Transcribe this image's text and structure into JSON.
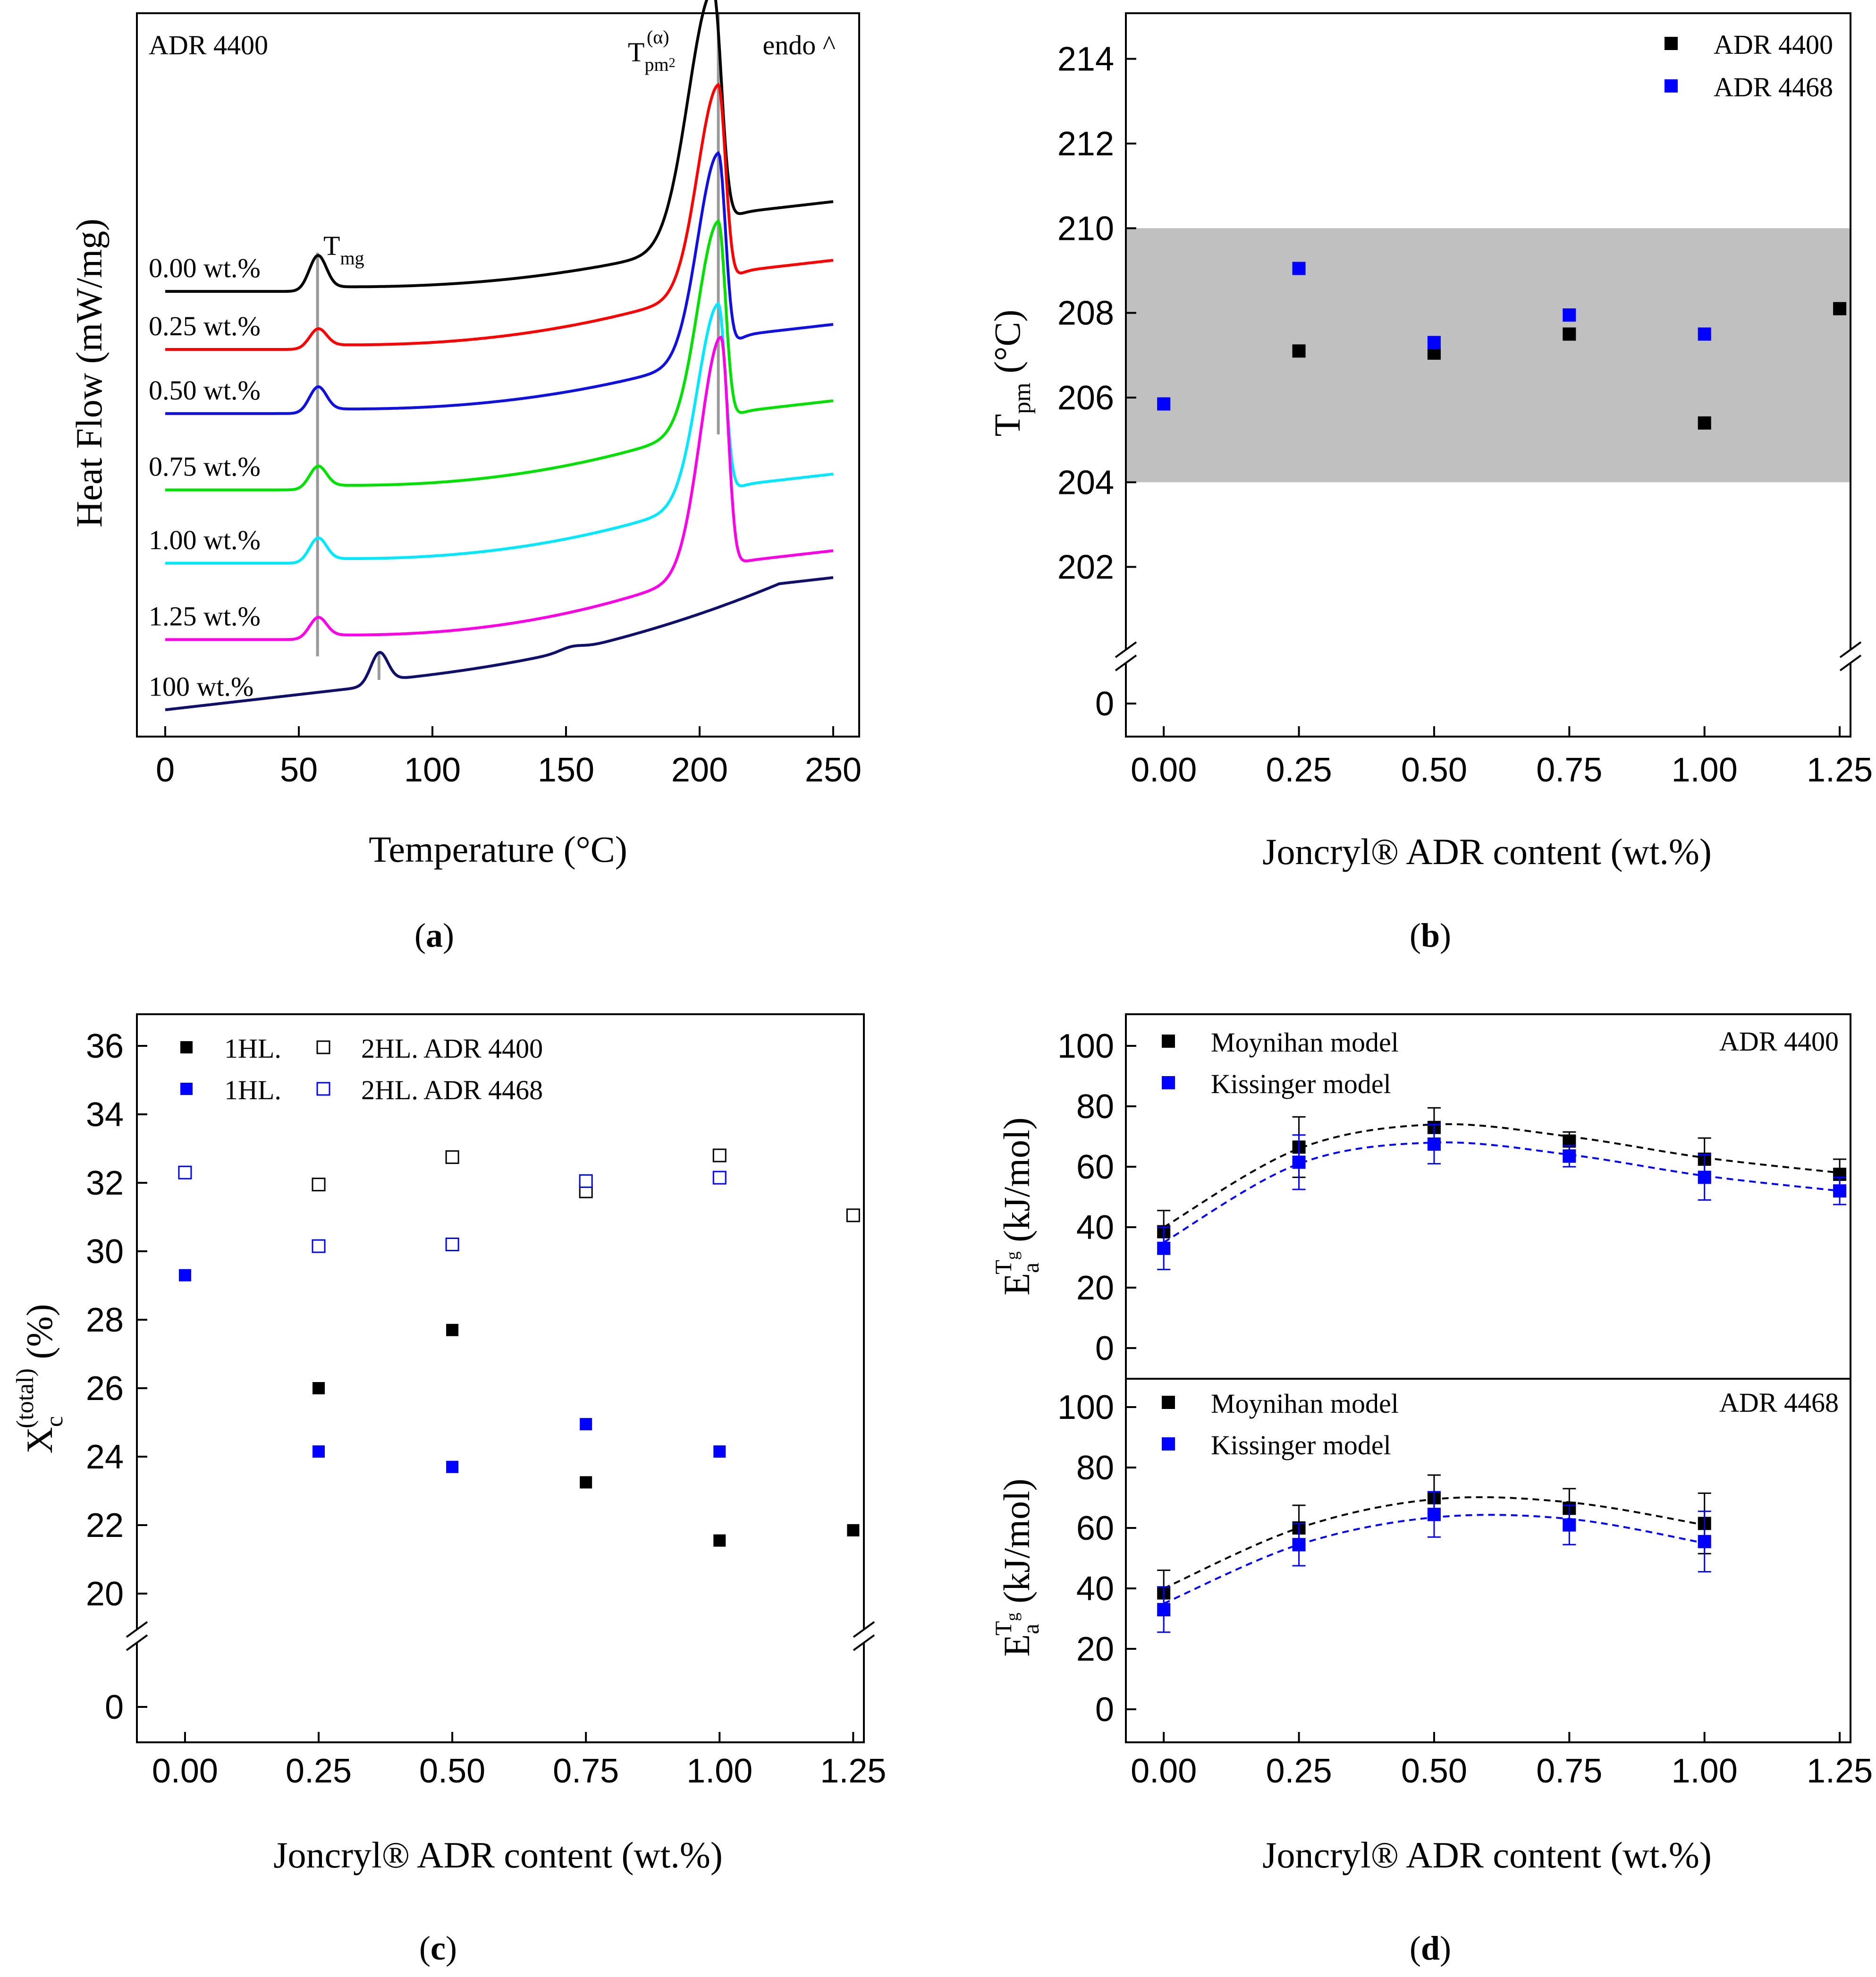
{
  "panels": {
    "a": {
      "label": "a",
      "corner_left": "ADR 4400",
      "corner_right": "endo ^",
      "peak_label_base": "T",
      "peak_label_sub": "pm",
      "peak_label_subsub": "2",
      "peak_label_sup": "(α)",
      "tmg_label_base": "T",
      "tmg_label_sub": "mg"
    },
    "b": {
      "label": "b"
    },
    "c": {
      "label": "c"
    },
    "d": {
      "label": "d"
    }
  },
  "chart_data": [
    {
      "id": "a",
      "type": "line",
      "xlabel": "Temperature (°C)",
      "ylabel": "Heat Flow (mW/mg)",
      "xlim": [
        0,
        250
      ],
      "xticks": [
        0,
        50,
        100,
        150,
        200,
        250
      ],
      "tmg_line_x": 57,
      "tpm_line_x": 207,
      "pure_line_x": 80,
      "series": [
        {
          "name": "0.00 wt.%",
          "color": "#000000",
          "offset": 12.5,
          "tg": 57,
          "tg_h": 1.1,
          "tail": 1.1,
          "tm": 205,
          "tm_h": 8.2,
          "tm_w": 5,
          "end": 2.6
        },
        {
          "name": "0.25 wt.%",
          "color": "#ff0000",
          "offset": 10.6,
          "tg": 57,
          "tg_h": 0.6,
          "tail": 1.35,
          "tm": 207,
          "tm_h": 6.6,
          "tm_w": 4.2,
          "end": 2.6
        },
        {
          "name": "0.50 wt.%",
          "color": "#1010e0",
          "offset": 8.5,
          "tg": 57,
          "tg_h": 0.8,
          "tail": 1.25,
          "tm": 207,
          "tm_h": 6.6,
          "tm_w": 4.2,
          "end": 2.6
        },
        {
          "name": "0.75 wt.%",
          "color": "#00e000",
          "offset": 6.0,
          "tg": 57,
          "tg_h": 0.7,
          "tail": 1.45,
          "tm": 207,
          "tm_h": 6.6,
          "tm_w": 4.2,
          "end": 2.6
        },
        {
          "name": "1.00 wt.%",
          "color": "#00e8ff",
          "offset": 3.6,
          "tg": 57,
          "tg_h": 0.75,
          "tail": 1.45,
          "tm": 207,
          "tm_h": 6.3,
          "tm_w": 4.2,
          "end": 2.6
        },
        {
          "name": "1.25 wt.%",
          "color": "#ff00e6",
          "offset": 1.1,
          "tg": 57,
          "tg_h": 0.65,
          "tail": 1.6,
          "tm": 208,
          "tm_h": 7.5,
          "tm_w": 4.2,
          "end": 2.6
        },
        {
          "name": "100 wt.%",
          "color": "#10106a",
          "offset": -1.2,
          "tg": 80,
          "tg_h": 1.0,
          "tail": 1.2,
          "tm": 0,
          "tm_h": 0,
          "tm_w": 1,
          "end": 2.5
        }
      ]
    },
    {
      "id": "b",
      "type": "scatter",
      "xlabel": "Joncryl® ADR content (wt.%)",
      "ylabel": "T",
      "ylabel_sub": "pm",
      "ylabel_tail": " (°C)",
      "xlim": [
        -0.07,
        1.27
      ],
      "xticks": [
        0.0,
        0.25,
        0.5,
        0.75,
        1.0,
        1.25
      ],
      "xticklabels": [
        "0.00",
        "0.25",
        "0.50",
        "0.75",
        "1.00",
        "1.25"
      ],
      "ylim": [
        200,
        215
      ],
      "yticks": [
        202,
        204,
        206,
        208,
        210,
        212,
        214
      ],
      "break_label": "0",
      "band": [
        204,
        210
      ],
      "series": [
        {
          "name": "ADR 4400",
          "color": "#000000",
          "x": [
            0.25,
            0.5,
            0.75,
            1.0,
            1.25
          ],
          "y": [
            207.1,
            207.05,
            207.5,
            205.4,
            208.1
          ]
        },
        {
          "name": "ADR 4468",
          "color": "#0000ff",
          "x": [
            0.0,
            0.25,
            0.5,
            0.75,
            1.0
          ],
          "y": [
            205.85,
            209.05,
            207.3,
            207.95,
            207.5
          ]
        }
      ]
    },
    {
      "id": "c",
      "type": "scatter",
      "xlabel": "Joncryl® ADR content (wt.%)",
      "ylabel": "X",
      "ylabel_sub": "c",
      "ylabel_sup": "(total)",
      "ylabel_tail": " (%)",
      "xlim": [
        -0.09,
        1.27
      ],
      "xticks": [
        0.0,
        0.25,
        0.5,
        0.75,
        1.0,
        1.25
      ],
      "xticklabels": [
        "0.00",
        "0.25",
        "0.50",
        "0.75",
        "1.00",
        "1.25"
      ],
      "ylim": [
        18,
        37
      ],
      "yticks": [
        20,
        22,
        24,
        26,
        28,
        30,
        32,
        34,
        36
      ],
      "break_label": "0",
      "legend_col1": [
        "1HL.",
        "1HL."
      ],
      "legend_col2": [
        "2HL. ADR 4400",
        "2HL. ADR 4468"
      ],
      "series": [
        {
          "name": "1HL. ADR 4400",
          "color": "#000000",
          "filled": true,
          "x": [
            0.25,
            0.5,
            0.75,
            1.0,
            1.25
          ],
          "y": [
            26.0,
            27.7,
            23.25,
            21.55,
            21.85
          ]
        },
        {
          "name": "2HL. ADR 4400",
          "color": "#000000",
          "filled": false,
          "x": [
            0.25,
            0.5,
            0.75,
            1.0,
            1.25
          ],
          "y": [
            31.95,
            32.75,
            31.75,
            32.8,
            31.05
          ]
        },
        {
          "name": "1HL. ADR 4468",
          "color": "#0000ff",
          "filled": true,
          "x": [
            0.0,
            0.25,
            0.5,
            0.75,
            1.0
          ],
          "y": [
            29.3,
            24.15,
            23.7,
            24.95,
            24.15
          ]
        },
        {
          "name": "2HL. ADR 4468",
          "color": "#0000ff",
          "filled": false,
          "x": [
            0.0,
            0.25,
            0.5,
            0.75,
            1.0
          ],
          "y": [
            32.3,
            30.15,
            30.2,
            32.05,
            32.15
          ]
        }
      ]
    },
    {
      "id": "d",
      "type": "scatter",
      "xlabel": "Joncryl® ADR content (wt.%)",
      "ylabel": "E",
      "ylabel_sub": "a",
      "ylabel_sup": "T",
      "ylabel_supsub": "g",
      "ylabel_tail": " (kJ/mol)",
      "xlim": [
        -0.07,
        1.27
      ],
      "xticks": [
        0.0,
        0.25,
        0.5,
        0.75,
        1.0,
        1.25
      ],
      "xticklabels": [
        "0.00",
        "0.25",
        "0.50",
        "0.75",
        "1.00",
        "1.25"
      ],
      "ylim": [
        -10,
        110
      ],
      "yticks": [
        0,
        20,
        40,
        60,
        80,
        100
      ],
      "subplots": [
        {
          "title": "ADR 4400",
          "series": [
            {
              "name": "Moynihan model",
              "color": "#000000",
              "x": [
                0.0,
                0.25,
                0.5,
                0.75,
                1.0,
                1.25
              ],
              "y": [
                38.5,
                66.5,
                73.0,
                68.5,
                62.5,
                57.5
              ],
              "err": [
                7.0,
                10.0,
                6.5,
                3.0,
                7.0,
                5.0
              ],
              "fit": [
                [
                  0.0,
                  40
                ],
                [
                  0.25,
                  66
                ],
                [
                  0.5,
                  74
                ],
                [
                  0.75,
                  70
                ],
                [
                  1.0,
                  63
                ],
                [
                  1.25,
                  58
                ]
              ]
            },
            {
              "name": "Kissinger model",
              "color": "#0000ff",
              "x": [
                0.0,
                0.25,
                0.5,
                0.75,
                1.0,
                1.25
              ],
              "y": [
                33.0,
                61.5,
                67.5,
                63.5,
                56.5,
                52.0
              ],
              "err": [
                7.0,
                9.0,
                6.5,
                3.5,
                7.5,
                4.5
              ],
              "fit": [
                [
                  0.0,
                  35
                ],
                [
                  0.25,
                  61
                ],
                [
                  0.5,
                  68
                ],
                [
                  0.75,
                  64
                ],
                [
                  1.0,
                  57
                ],
                [
                  1.25,
                  52
                ]
              ]
            }
          ]
        },
        {
          "title": "ADR 4468",
          "series": [
            {
              "name": "Moynihan model",
              "color": "#000000",
              "x": [
                0.0,
                0.25,
                0.5,
                0.75,
                1.0
              ],
              "y": [
                38.5,
                60.0,
                70.0,
                66.5,
                61.5
              ],
              "err": [
                7.5,
                7.5,
                7.5,
                6.5,
                10.0
              ],
              "fit": [
                [
                  0.0,
                  40
                ],
                [
                  0.25,
                  60
                ],
                [
                  0.5,
                  69.5
                ],
                [
                  0.75,
                  68.5
                ],
                [
                  1.0,
                  61
                ]
              ]
            },
            {
              "name": "Kissinger model",
              "color": "#0000ff",
              "x": [
                0.0,
                0.25,
                0.5,
                0.75,
                1.0
              ],
              "y": [
                33.0,
                54.5,
                64.5,
                61.0,
                55.5
              ],
              "err": [
                7.5,
                7.0,
                7.5,
                6.5,
                10.0
              ],
              "fit": [
                [
                  0.0,
                  35
                ],
                [
                  0.25,
                  54.5
                ],
                [
                  0.5,
                  63.5
                ],
                [
                  0.75,
                  63
                ],
                [
                  1.0,
                  55
                ]
              ]
            }
          ]
        }
      ]
    }
  ]
}
